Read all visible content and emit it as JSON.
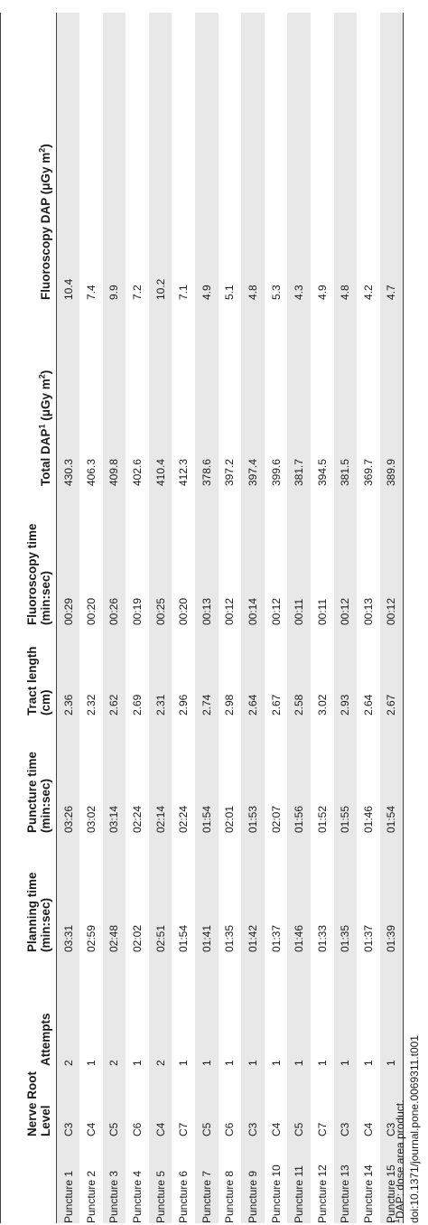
{
  "table": {
    "headers": [
      {
        "line1": "",
        "line2": ""
      },
      {
        "line1": "Nerve Root",
        "line2": "Level"
      },
      {
        "line1": "Attempts",
        "line2": ""
      },
      {
        "line1": "Planning time",
        "line2": "(min:sec)"
      },
      {
        "line1": "Puncture time",
        "line2": "(min:sec)"
      },
      {
        "line1": "Tract length",
        "line2": "(cm)"
      },
      {
        "line1": "Fluoroscopy time",
        "line2": "(min:sec)"
      },
      {
        "line1": "Total DAP",
        "sup": "1",
        "line1b": " (μGy m",
        "sup2": "2",
        "line1c": ")"
      },
      {
        "line1": "Fluoroscopy DAP (μGy m",
        "sup": "2",
        "line1c": ")"
      }
    ],
    "rows": [
      [
        "Puncture 1",
        "C3",
        "2",
        "03:31",
        "03:26",
        "2.36",
        "00:29",
        "430.3",
        "10.4"
      ],
      [
        "Puncture 2",
        "C4",
        "1",
        "02:59",
        "03:02",
        "2.32",
        "00:20",
        "406.3",
        "7.4"
      ],
      [
        "Puncture 3",
        "C5",
        "2",
        "02:48",
        "03:14",
        "2.62",
        "00:26",
        "409.8",
        "9.9"
      ],
      [
        "Puncture 4",
        "C6",
        "1",
        "02:02",
        "02:24",
        "2.69",
        "00:19",
        "402.6",
        "7.2"
      ],
      [
        "Puncture 5",
        "C4",
        "2",
        "02:51",
        "02:14",
        "2.31",
        "00:25",
        "410.4",
        "10.2"
      ],
      [
        "Puncture 6",
        "C7",
        "1",
        "01:54",
        "02:24",
        "2.96",
        "00:20",
        "412.3",
        "7.1"
      ],
      [
        "Puncture 7",
        "C5",
        "1",
        "01:41",
        "01:54",
        "2.74",
        "00:13",
        "378.6",
        "4.9"
      ],
      [
        "Puncture 8",
        "C6",
        "1",
        "01:35",
        "02:01",
        "2.98",
        "00:12",
        "397.2",
        "5.1"
      ],
      [
        "Puncture 9",
        "C3",
        "1",
        "01:42",
        "01:53",
        "2.64",
        "00:14",
        "397.4",
        "4.8"
      ],
      [
        "Puncture 10",
        "C4",
        "1",
        "01:37",
        "02:07",
        "2.67",
        "00:12",
        "399.6",
        "5.3"
      ],
      [
        "Puncture 11",
        "C5",
        "1",
        "01:46",
        "01:56",
        "2.58",
        "00:11",
        "381.7",
        "4.3"
      ],
      [
        "Puncture 12",
        "C7",
        "1",
        "01:33",
        "01:52",
        "3.02",
        "00:11",
        "394.5",
        "4.9"
      ],
      [
        "Puncture 13",
        "C3",
        "1",
        "01:35",
        "01:55",
        "2.93",
        "00:12",
        "381.5",
        "4.8"
      ],
      [
        "Puncture 14",
        "C4",
        "1",
        "01:37",
        "01:46",
        "2.64",
        "00:13",
        "369.7",
        "4.2"
      ],
      [
        "Puncture 15",
        "C3",
        "1",
        "01:39",
        "01:54",
        "2.67",
        "00:12",
        "389.9",
        "4.7"
      ]
    ]
  },
  "footnote": {
    "sup": "1",
    "text": "DAP: dose area product."
  },
  "doi": "doi:10.1371/journal.pone.0069311.t001"
}
